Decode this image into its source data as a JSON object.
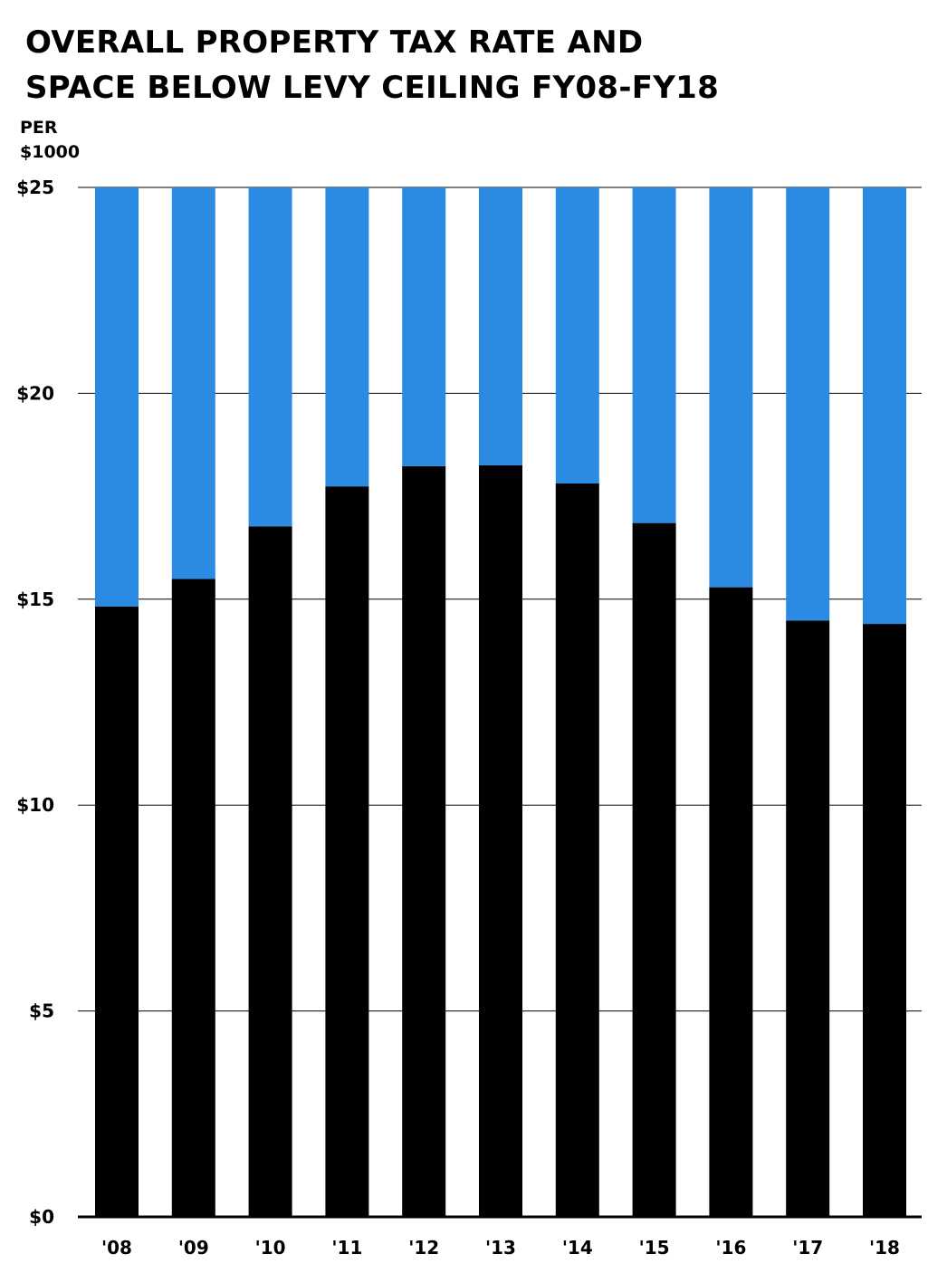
{
  "chart_data": {
    "type": "bar",
    "stacked": true,
    "title_lines": [
      "OVERALL PROPERTY TAX RATE AND",
      "SPACE BELOW LEVY CEILING FY08-FY18"
    ],
    "ylabel_lines": [
      "PER",
      "$1000"
    ],
    "categories": [
      "'08",
      "'09",
      "'10",
      "'11",
      "'12",
      "'13",
      "'14",
      "'15",
      "'16",
      "'17",
      "'18"
    ],
    "series": [
      {
        "color": "#000000",
        "values": [
          14.82,
          15.49,
          16.77,
          17.74,
          18.23,
          18.25,
          17.81,
          16.85,
          15.29,
          14.48,
          14.4
        ]
      },
      {
        "color": "#2b8be3",
        "values": [
          10.18,
          9.51,
          8.23,
          7.26,
          6.77,
          6.75,
          7.19,
          8.15,
          9.71,
          10.52,
          10.6
        ]
      }
    ],
    "ylim": [
      0,
      25
    ],
    "yticks": [
      0,
      5,
      10,
      15,
      20,
      25
    ],
    "ytick_labels": [
      "$0",
      "$5",
      "$10",
      "$15",
      "$20",
      "$25"
    ],
    "grid": true
  }
}
